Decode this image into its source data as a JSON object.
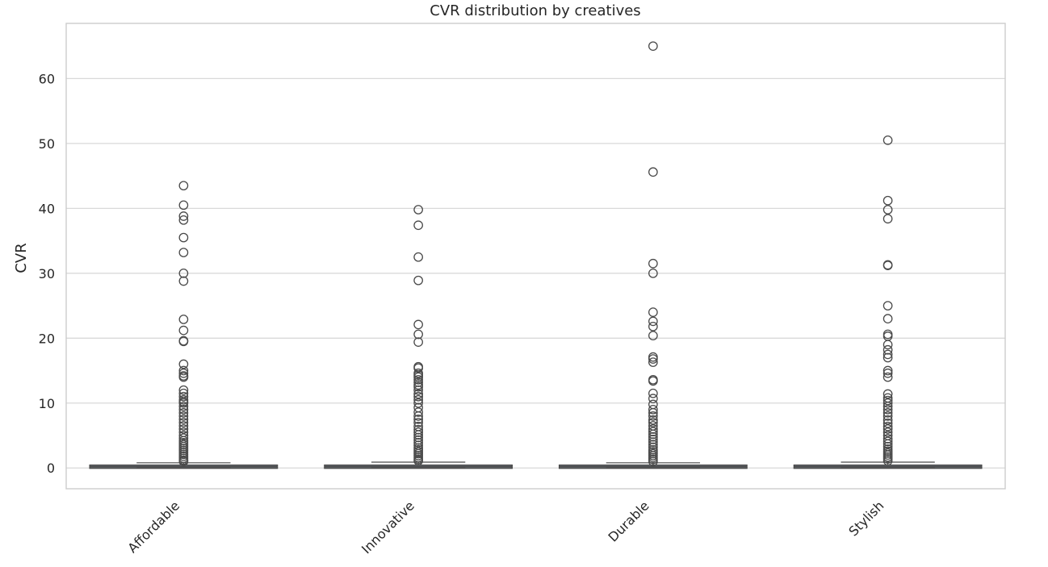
{
  "chart_data": {
    "type": "box",
    "title": "CVR distribution by creatives",
    "xlabel": "",
    "ylabel": "CVR",
    "ylim": [
      -3.2,
      68.5
    ],
    "yticks": [
      0,
      10,
      20,
      30,
      40,
      50,
      60
    ],
    "ytick_labels": [
      "0",
      "10",
      "20",
      "30",
      "40",
      "50",
      "60"
    ],
    "grid": true,
    "legend": "none",
    "colors": {
      "box_fill": "#5f646b",
      "box_edge": "#4a4a4a",
      "grid": "#d9d9d9",
      "frame": "#cccccc",
      "background": "#ffffff"
    },
    "categories": [
      "Affordable",
      "Innovative",
      "Durable",
      "Stylish"
    ],
    "boxes": [
      {
        "category": "Affordable",
        "q1": 0.0,
        "median": 0.2,
        "q3": 0.4,
        "whisker_low": 0.0,
        "whisker_high": 0.8,
        "outliers": [
          43.5,
          40.5,
          38.8,
          38.2,
          35.5,
          33.2,
          30.0,
          28.8,
          22.9,
          21.2,
          19.6,
          19.5,
          16.0,
          15.0,
          14.6,
          14.2,
          14.0,
          12.0,
          11.5,
          11.0,
          10.5,
          10.2,
          10.0,
          9.5,
          9.0,
          8.5,
          8.0,
          7.5,
          7.0,
          6.5,
          6.0,
          5.5,
          5.0,
          4.6,
          4.2,
          3.9,
          3.6,
          3.3,
          3.0,
          2.7,
          2.4,
          2.1,
          1.8,
          1.5,
          1.2,
          1.0
        ]
      },
      {
        "category": "Innovative",
        "q1": 0.0,
        "median": 0.2,
        "q3": 0.4,
        "whisker_low": 0.0,
        "whisker_high": 0.9,
        "outliers": [
          39.8,
          37.4,
          32.5,
          28.9,
          22.1,
          20.6,
          19.4,
          15.6,
          15.4,
          14.6,
          14.3,
          14.0,
          13.6,
          13.2,
          12.8,
          12.5,
          12.0,
          11.4,
          11.0,
          10.5,
          10.0,
          9.3,
          8.6,
          8.0,
          7.5,
          7.0,
          6.4,
          5.9,
          5.5,
          5.1,
          4.7,
          4.3,
          3.9,
          3.5,
          3.1,
          2.8,
          2.5,
          2.2,
          1.9,
          1.6,
          1.3,
          1.1
        ]
      },
      {
        "category": "Durable",
        "q1": 0.0,
        "median": 0.2,
        "q3": 0.4,
        "whisker_low": 0.0,
        "whisker_high": 0.8,
        "outliers": [
          65.0,
          45.6,
          31.5,
          30.0,
          24.0,
          22.6,
          21.8,
          20.4,
          17.1,
          16.8,
          16.3,
          13.6,
          13.4,
          11.5,
          10.7,
          9.8,
          9.0,
          8.5,
          8.0,
          7.4,
          7.0,
          6.5,
          6.0,
          5.6,
          5.2,
          4.8,
          4.4,
          4.0,
          3.6,
          3.2,
          2.8,
          2.5,
          2.2,
          1.9,
          1.6,
          1.3,
          1.0
        ]
      },
      {
        "category": "Stylish",
        "q1": 0.0,
        "median": 0.2,
        "q3": 0.4,
        "whisker_low": 0.0,
        "whisker_high": 0.9,
        "outliers": [
          50.5,
          41.2,
          39.8,
          38.4,
          31.3,
          31.2,
          25.0,
          23.0,
          20.6,
          20.3,
          19.0,
          18.2,
          17.5,
          17.0,
          15.0,
          14.6,
          14.0,
          11.4,
          10.8,
          10.4,
          10.0,
          9.5,
          9.0,
          8.5,
          8.0,
          7.4,
          6.9,
          6.4,
          6.0,
          5.5,
          5.0,
          4.5,
          4.1,
          3.7,
          3.3,
          2.9,
          2.6,
          2.3,
          2.0,
          1.7,
          1.4,
          1.1
        ]
      }
    ]
  }
}
